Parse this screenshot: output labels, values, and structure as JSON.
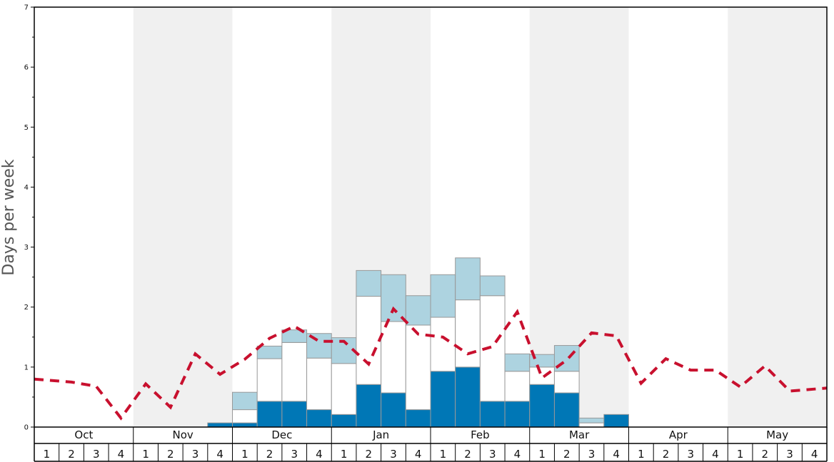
{
  "chart_data": {
    "type": "bar",
    "ylabel": "Days per week",
    "ylim": [
      0,
      7
    ],
    "y_ticks": [
      "0",
      "1",
      "2",
      "3",
      "4",
      "5",
      "6",
      "7"
    ],
    "months": [
      "Oct",
      "Nov",
      "Dec",
      "Jan",
      "Feb",
      "Mar",
      "Apr",
      "May"
    ],
    "week_labels": [
      "1",
      "2",
      "3",
      "4"
    ],
    "categories": [
      "Oct 1",
      "Oct 2",
      "Oct 3",
      "Oct 4",
      "Nov 1",
      "Nov 2",
      "Nov 3",
      "Nov 4",
      "Dec 1",
      "Dec 2",
      "Dec 3",
      "Dec 4",
      "Jan 1",
      "Jan 2",
      "Jan 3",
      "Jan 4",
      "Feb 1",
      "Feb 2",
      "Feb 3",
      "Feb 4",
      "Mar 1",
      "Mar 2",
      "Mar 3",
      "Mar 4",
      "Apr 1",
      "Apr 2",
      "Apr 3",
      "Apr 4",
      "May 1",
      "May 2",
      "May 3",
      "May 4"
    ],
    "series": [
      {
        "color": "#0077b6",
        "values": [
          0,
          0,
          0,
          0,
          0,
          0,
          0,
          0.07,
          0.07,
          0.43,
          0.43,
          0.29,
          0.21,
          0.71,
          0.57,
          0.29,
          0.93,
          1.0,
          0.43,
          0.43,
          0.71,
          0.57,
          0,
          0.21,
          0,
          0,
          0,
          0,
          0,
          0,
          0,
          0
        ]
      },
      {
        "color": "#ffffff",
        "values": [
          0,
          0,
          0,
          0,
          0,
          0,
          0,
          0,
          0.22,
          0.71,
          0.98,
          0.86,
          0.85,
          1.47,
          1.19,
          1.41,
          0.9,
          1.12,
          1.76,
          0.5,
          0.29,
          0.36,
          0.07,
          0,
          0,
          0,
          0,
          0,
          0,
          0,
          0,
          0
        ]
      },
      {
        "color": "#add3e0",
        "values": [
          0,
          0,
          0,
          0,
          0,
          0,
          0,
          0,
          0.29,
          0.21,
          0.21,
          0.41,
          0.43,
          0.43,
          0.78,
          0.49,
          0.71,
          0.7,
          0.33,
          0.29,
          0.21,
          0.43,
          0.08,
          0,
          0,
          0,
          0,
          0,
          0,
          0,
          0,
          0
        ]
      },
      {
        "color": "#c8102e",
        "style": "dashed",
        "type": "line",
        "values": [
          0.8,
          0.75,
          0.68,
          0.15,
          0.72,
          0.33,
          1.22,
          0.88,
          1.13,
          1.48,
          1.68,
          1.43,
          1.43,
          1.05,
          1.97,
          1.55,
          1.5,
          1.22,
          1.34,
          1.92,
          0.82,
          1.12,
          1.57,
          1.52,
          0.73,
          1.14,
          0.95,
          0.95,
          0.67,
          1.02,
          0.6,
          0.65
        ]
      }
    ],
    "colors": {
      "shade_band": "#f0f0f0",
      "grid_line": "#999999",
      "axis": "#000000"
    }
  }
}
